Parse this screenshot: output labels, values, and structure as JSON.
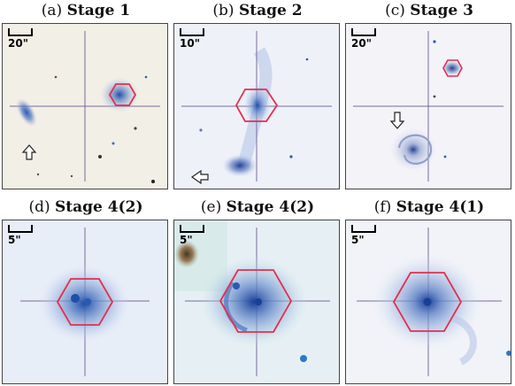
{
  "panels": [
    {
      "letter": "(a)",
      "stage": "Stage 1",
      "scale": "20\"",
      "bg": "#f2efe6"
    },
    {
      "letter": "(b)",
      "stage": "Stage 2",
      "scale": "10\"",
      "bg": "#eef1f8"
    },
    {
      "letter": "(c)",
      "stage": "Stage 3",
      "scale": "20\"",
      "bg": "#f3f3f8"
    },
    {
      "letter": "(d)",
      "stage": "Stage 4(2)",
      "scale": "5\"",
      "bg": "#e8eef8"
    },
    {
      "letter": "(e)",
      "stage": "Stage 4(2)",
      "scale": "5\"",
      "bg": "#e6f0f4"
    },
    {
      "letter": "(f)",
      "stage": "Stage 4(1)",
      "scale": "5\"",
      "bg": "#f1f3f8"
    }
  ],
  "colors": {
    "hexagon": "#e0304f",
    "crosshair": "#7a6a9a",
    "galaxy_core": "#1f4fa8"
  }
}
